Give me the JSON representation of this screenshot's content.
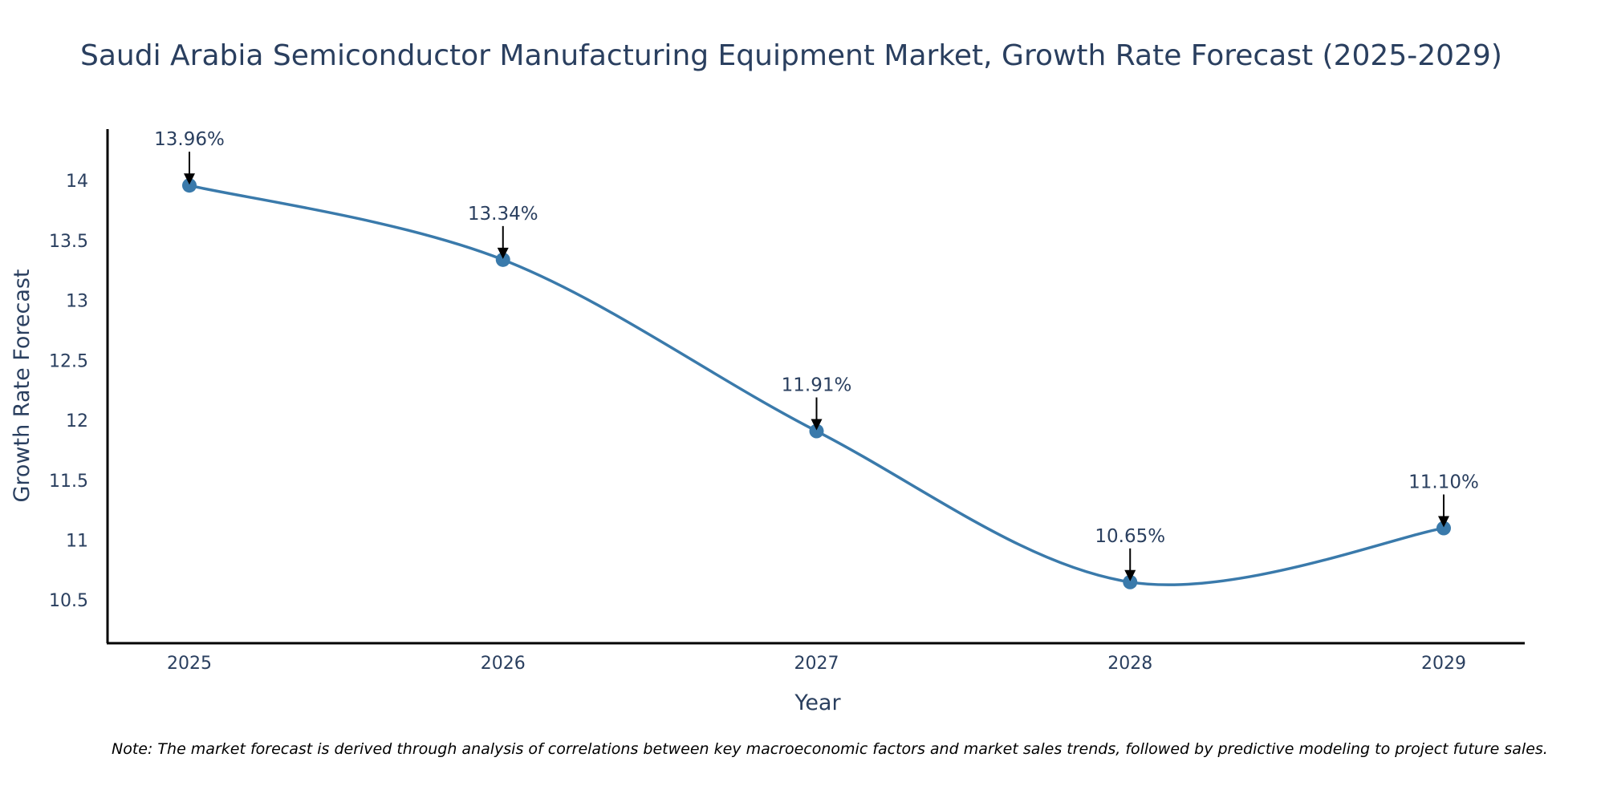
{
  "chart_data": {
    "type": "line",
    "title": "Saudi Arabia Semiconductor Manufacturing Equipment Market, Growth Rate Forecast (2025-2029)",
    "xlabel": "Year",
    "ylabel": "Growth Rate Forecast",
    "categories": [
      "2025",
      "2026",
      "2027",
      "2028",
      "2029"
    ],
    "values": [
      13.96,
      13.34,
      11.91,
      10.65,
      11.1
    ],
    "data_labels": [
      "13.96%",
      "13.34%",
      "11.91%",
      "10.65%",
      "11.10%"
    ],
    "y_ticks": [
      10.5,
      11,
      11.5,
      12,
      12.5,
      13,
      13.5,
      14
    ],
    "y_tick_labels": [
      "10.5",
      "11",
      "11.5",
      "12",
      "12.5",
      "13",
      "13.5",
      "14"
    ],
    "ylim": [
      10.14,
      14.43
    ],
    "line_shape": "spline",
    "grid": false,
    "legend": "none",
    "colors": {
      "line": "#3a7aab",
      "marker": "#3a7aab",
      "arrow": "#000000",
      "text": "#2a3f5f",
      "axis": "#000000"
    },
    "note": "Note: The market forecast is derived through analysis of correlations between key macroeconomic factors and market sales trends, followed by predictive modeling to project future sales."
  }
}
